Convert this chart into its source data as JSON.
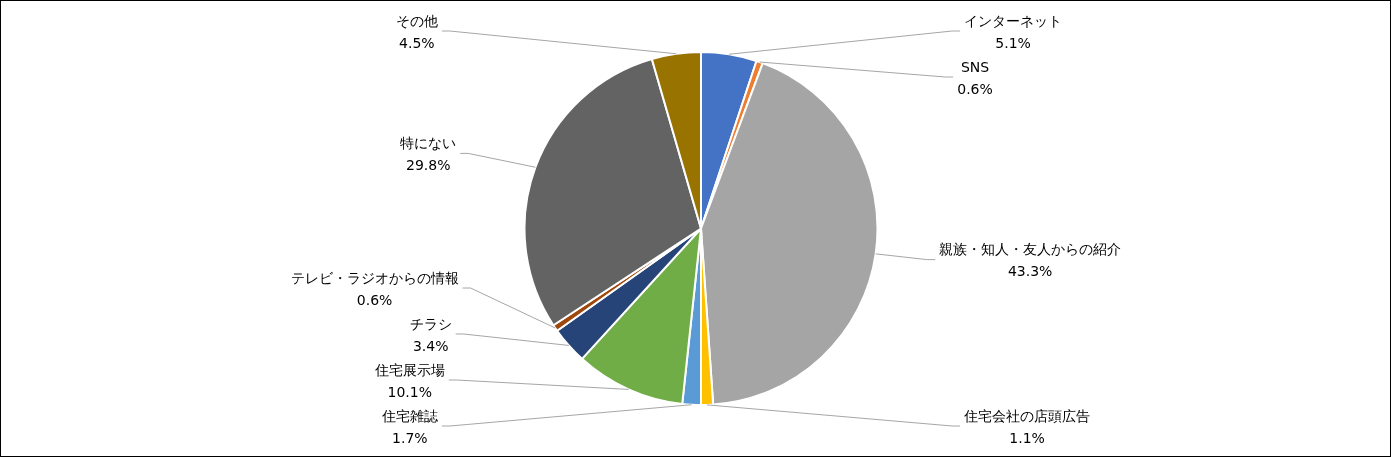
{
  "chart_data": {
    "type": "pie",
    "legend": false,
    "categories": [
      "インターネット",
      "SNS",
      "親族・知人・友人からの紹介",
      "住宅会社の店頭広告",
      "住宅雑誌",
      "住宅展示場",
      "チラシ",
      "テレビ・ラジオからの情報",
      "特にない",
      "その他"
    ],
    "values": [
      5.1,
      0.6,
      43.3,
      1.1,
      1.7,
      10.1,
      3.4,
      0.6,
      29.8,
      4.5
    ],
    "colors": [
      "#4472c4",
      "#ed7d31",
      "#a5a5a5",
      "#ffc000",
      "#5b9bd5",
      "#70ad47",
      "#264478",
      "#9e480e",
      "#636363",
      "#997300"
    ],
    "value_labels": [
      "5.1%",
      "0.6%",
      "43.3%",
      "1.1%",
      "1.7%",
      "10.1%",
      "3.4%",
      "0.6%",
      "29.8%",
      "4.5%"
    ]
  }
}
